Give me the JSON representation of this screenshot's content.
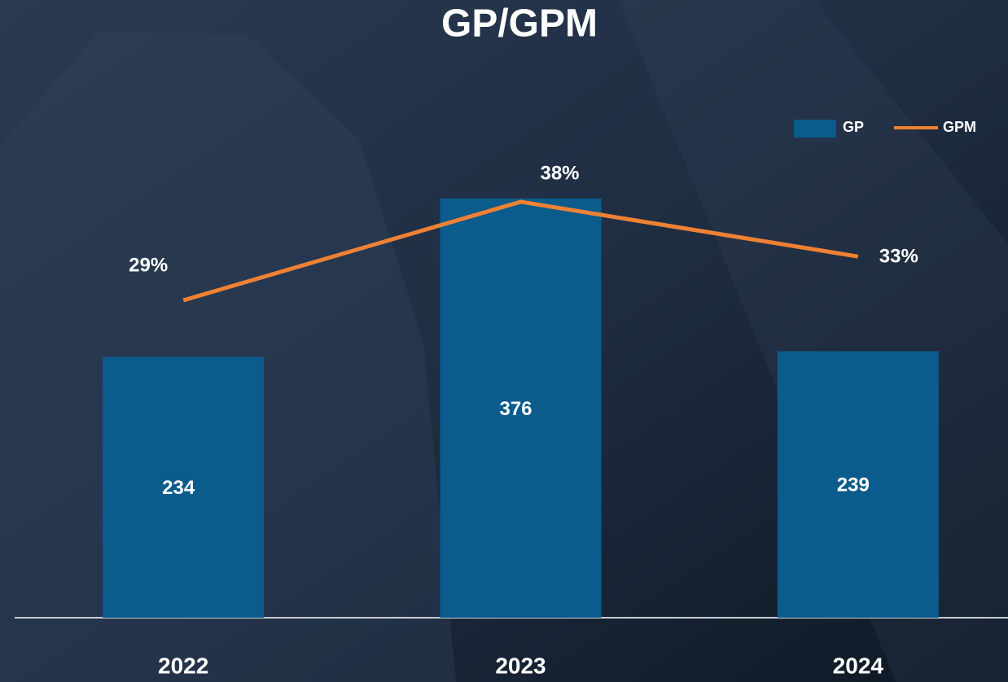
{
  "chart_data": {
    "type": "bar+line",
    "title": "GP/GPM",
    "categories": [
      "2022",
      "2023",
      "2024"
    ],
    "series": [
      {
        "name": "GP",
        "type": "bar",
        "color": "#0b5b8c",
        "values": [
          234,
          376,
          239
        ]
      },
      {
        "name": "GPM",
        "type": "line",
        "axis": "y2",
        "color": "#ee8134",
        "values": [
          29,
          38,
          33
        ],
        "value_labels": [
          "29%",
          "38%",
          "33%"
        ]
      }
    ],
    "ylim": [
      0,
      481
    ],
    "y2lim": [
      0,
      49
    ],
    "legend": "top-right"
  }
}
